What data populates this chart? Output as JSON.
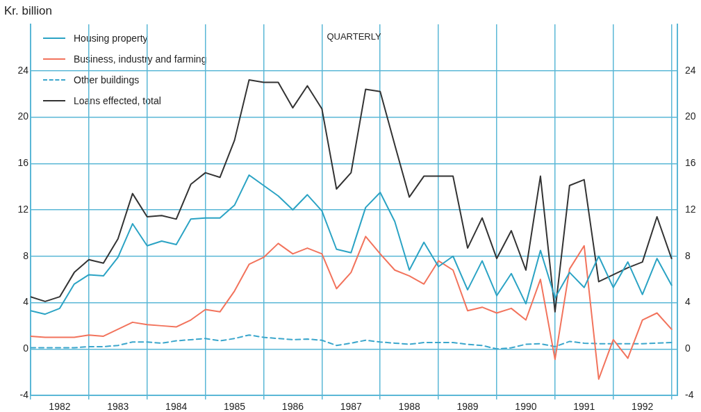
{
  "chart_data": {
    "type": "line",
    "ylabel": "Kr. billion",
    "annotations": [
      "QUARTERLY"
    ],
    "x": [
      1982,
      1982.25,
      1982.5,
      1982.75,
      1983,
      1983.25,
      1983.5,
      1983.75,
      1984,
      1984.25,
      1984.5,
      1984.75,
      1985,
      1985.25,
      1985.5,
      1985.75,
      1986,
      1986.25,
      1986.5,
      1986.75,
      1987,
      1987.25,
      1987.5,
      1987.75,
      1988,
      1988.25,
      1988.5,
      1988.75,
      1989,
      1989.25,
      1989.5,
      1989.75,
      1990,
      1990.25,
      1990.5,
      1990.75,
      1991,
      1991.25,
      1991.5,
      1991.75,
      1992,
      1992.25,
      1992.5,
      1992.75,
      1993
    ],
    "series": [
      {
        "name": "Housing property",
        "color": "#2ba3c4",
        "line_style": "solid",
        "values": [
          3.3,
          3.0,
          3.5,
          5.6,
          6.4,
          6.3,
          7.9,
          10.8,
          8.9,
          9.3,
          9.0,
          11.2,
          11.3,
          11.3,
          12.4,
          15.0,
          14.1,
          13.2,
          12.0,
          13.3,
          11.9,
          8.6,
          8.3,
          12.2,
          13.5,
          11.0,
          6.8,
          9.2,
          7.1,
          8.0,
          5.1,
          7.6,
          4.6,
          6.5,
          3.9,
          8.5,
          4.4,
          6.6,
          5.3,
          8.0,
          5.3,
          7.5,
          4.7,
          7.8,
          5.5
        ]
      },
      {
        "name": "Business, industry and farming",
        "color": "#f2735c",
        "line_style": "solid",
        "values": [
          1.1,
          1.0,
          1.0,
          1.0,
          1.2,
          1.1,
          1.7,
          2.3,
          2.1,
          2.0,
          1.9,
          2.5,
          3.4,
          3.2,
          5.0,
          7.3,
          7.9,
          9.1,
          8.2,
          8.7,
          8.2,
          5.2,
          6.6,
          9.7,
          8.2,
          6.8,
          6.3,
          5.6,
          7.6,
          6.8,
          3.3,
          3.6,
          3.1,
          3.5,
          2.5,
          6.0,
          -0.9,
          6.9,
          8.9,
          -2.6,
          0.8,
          -0.8,
          2.5,
          3.1,
          1.7
        ]
      },
      {
        "name": "Other buildings",
        "color": "#3aa6cc",
        "line_style": "dashed",
        "values": [
          0.1,
          0.1,
          0.1,
          0.1,
          0.2,
          0.2,
          0.3,
          0.6,
          0.6,
          0.5,
          0.7,
          0.8,
          0.9,
          0.7,
          0.9,
          1.2,
          1.0,
          0.9,
          0.8,
          0.85,
          0.75,
          0.3,
          0.5,
          0.75,
          0.6,
          0.5,
          0.4,
          0.55,
          0.55,
          0.55,
          0.4,
          0.3,
          0.0,
          0.1,
          0.4,
          0.45,
          0.2,
          0.65,
          0.5,
          0.45,
          0.45,
          0.45,
          0.45,
          0.5,
          0.55
        ]
      },
      {
        "name": "Loans effected, total",
        "color": "#333333",
        "line_style": "solid",
        "values": [
          4.5,
          4.1,
          4.5,
          6.6,
          7.7,
          7.4,
          9.5,
          13.4,
          11.4,
          11.5,
          11.2,
          14.2,
          15.2,
          14.8,
          18.0,
          23.2,
          23.0,
          23.0,
          20.8,
          22.7,
          20.7,
          13.8,
          15.2,
          22.4,
          22.2,
          17.6,
          13.1,
          14.9,
          14.9,
          14.9,
          8.7,
          11.3,
          7.8,
          10.2,
          6.8,
          14.9,
          3.2,
          14.1,
          14.6,
          5.8,
          6.4,
          7.0,
          7.5,
          11.4,
          7.8
        ]
      }
    ],
    "xlim": [
      1982,
      1993.1
    ],
    "xticks": [
      {
        "value": 1982,
        "label": null
      },
      {
        "value": 1982.5,
        "label": "1982"
      },
      {
        "value": 1983,
        "label": null
      },
      {
        "value": 1983.5,
        "label": "1983"
      },
      {
        "value": 1984,
        "label": null
      },
      {
        "value": 1984.5,
        "label": "1984"
      },
      {
        "value": 1985,
        "label": null
      },
      {
        "value": 1985.5,
        "label": "1985"
      },
      {
        "value": 1986,
        "label": null
      },
      {
        "value": 1986.5,
        "label": "1986"
      },
      {
        "value": 1987,
        "label": null
      },
      {
        "value": 1987.5,
        "label": "1987"
      },
      {
        "value": 1988,
        "label": null
      },
      {
        "value": 1988.5,
        "label": "1988"
      },
      {
        "value": 1989,
        "label": null
      },
      {
        "value": 1989.5,
        "label": "1989"
      },
      {
        "value": 1990,
        "label": null
      },
      {
        "value": 1990.5,
        "label": "1990"
      },
      {
        "value": 1991,
        "label": null
      },
      {
        "value": 1991.5,
        "label": "1991"
      },
      {
        "value": 1992,
        "label": null
      },
      {
        "value": 1992.5,
        "label": "1992"
      },
      {
        "value": 1993,
        "label": null
      }
    ],
    "ylim": [
      -4,
      28
    ],
    "yticks": [
      -4,
      0,
      4,
      8,
      12,
      16,
      20,
      24
    ],
    "y2lim": [
      -4,
      28
    ],
    "y2ticks": [
      -4,
      0,
      4,
      8,
      12,
      16,
      20,
      24
    ],
    "grid": true,
    "legend": "top left",
    "marker": "none"
  }
}
